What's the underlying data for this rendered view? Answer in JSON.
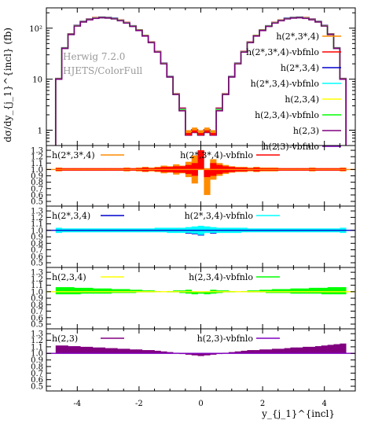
{
  "x_ticks": [
    "-4",
    "-2",
    "0",
    "2",
    "4"
  ],
  "x_label": "y_{j_1}^{incl}",
  "watermark": [
    "Herwig 7.2.0",
    "HJETS/ColorFull"
  ],
  "top": {
    "y_label": "dσ/dy_{j_1}^{incl} (fb)",
    "y_ticks": [
      "10²",
      "10",
      "1"
    ]
  },
  "ratio_ticks": [
    "1.3",
    "1.2",
    "1.1",
    "1.0",
    "0.9",
    "0.8",
    "0.7",
    "0.6",
    "0.5"
  ],
  "colors": {
    "h2s3s4": "#ff8c00",
    "h2s3s4_vbf": "#ff0000",
    "h2s34": "#0000cd",
    "h2s34_vbf": "#00ffff",
    "h234": "#ffff00",
    "h234_vbf": "#00ff00",
    "h23": "#800080",
    "h23_vbf": "#8000c0"
  },
  "chart_data": {
    "type": "histogram",
    "x_range": [
      -5,
      5
    ],
    "bin_edges": [
      -4.7,
      -4.5,
      -4.3,
      -4.1,
      -3.9,
      -3.7,
      -3.5,
      -3.3,
      -3.1,
      -2.9,
      -2.7,
      -2.5,
      -2.3,
      -2.1,
      -1.9,
      -1.7,
      -1.5,
      -1.3,
      -1.1,
      -0.9,
      -0.7,
      -0.5,
      -0.3,
      -0.1,
      0.1,
      0.3,
      0.5,
      0.7,
      0.9,
      1.1,
      1.3,
      1.5,
      1.7,
      1.9,
      2.1,
      2.3,
      2.5,
      2.7,
      2.9,
      3.1,
      3.3,
      3.5,
      3.7,
      3.9,
      4.1,
      4.3,
      4.5,
      4.7
    ],
    "main_panel": {
      "y_scale": "log",
      "y_range": [
        0.5,
        250
      ],
      "values": [
        10,
        40,
        75,
        110,
        132,
        146,
        156,
        160,
        158,
        152,
        140,
        126,
        108,
        90,
        70,
        52,
        34,
        20,
        11,
        5,
        2.4,
        0.8,
        0.9,
        0.8,
        0.9,
        0.8,
        2.4,
        5,
        11,
        20,
        34,
        52,
        70,
        90,
        108,
        126,
        140,
        152,
        158,
        160,
        156,
        146,
        132,
        110,
        75,
        40,
        10
      ],
      "series": [
        {
          "name": "h(2*,3*,4)",
          "color": "#ff8c00"
        },
        {
          "name": "h(2*,3*,4)-vbfnlo",
          "color": "#ff0000"
        },
        {
          "name": "h(2*,3,4)",
          "color": "#0000cd"
        },
        {
          "name": "h(2*,3,4)-vbfnlo",
          "color": "#00ffff"
        },
        {
          "name": "h(2,3,4)",
          "color": "#ffff00"
        },
        {
          "name": "h(2,3,4)-vbfnlo",
          "color": "#00ff00"
        },
        {
          "name": "h(2,3)",
          "color": "#800080"
        },
        {
          "name": "h(2,3)-vbfnlo",
          "color": "#8000c0"
        }
      ]
    },
    "ratio_panels": [
      {
        "y_range": [
          0.5,
          1.35
        ],
        "legend": [
          "h(2*,3*,4)",
          "h(2*,3*,4)-vbfnlo"
        ],
        "line": {
          "color": "#ff8c00",
          "values": [
            1,
            1,
            1,
            1,
            1,
            1,
            1,
            1,
            1,
            1,
            1,
            1,
            1,
            1,
            1,
            1,
            1,
            1,
            1,
            1,
            1,
            1,
            1,
            1,
            1,
            1,
            1,
            1,
            1,
            1,
            1,
            1,
            1,
            1,
            1,
            1,
            1,
            1,
            1,
            1,
            1,
            1,
            1,
            1,
            1,
            1,
            1
          ]
        },
        "band": {
          "color": "#ff8c00",
          "lo": [
            0.97,
            0.98,
            0.98,
            0.98,
            0.98,
            0.98,
            0.98,
            0.98,
            0.98,
            0.98,
            0.98,
            0.97,
            0.98,
            0.97,
            0.96,
            0.97,
            0.96,
            0.94,
            0.95,
            0.92,
            0.94,
            0.88,
            0.78,
            1.18,
            0.6,
            0.84,
            0.9,
            0.93,
            0.95,
            0.96,
            0.96,
            0.97,
            0.96,
            0.97,
            0.97,
            0.97,
            0.98,
            0.98,
            0.98,
            0.98,
            0.98,
            0.97,
            0.98,
            0.98,
            0.98,
            0.98,
            0.97
          ],
          "hi": [
            1.03,
            1.02,
            1.02,
            1.02,
            1.02,
            1.02,
            1.02,
            1.02,
            1.02,
            1.02,
            1.02,
            1.03,
            1.02,
            1.03,
            1.04,
            1.03,
            1.04,
            1.06,
            1.05,
            1.08,
            1.06,
            1.12,
            1.22,
            1.3,
            1.02,
            1.16,
            1.1,
            1.07,
            1.05,
            1.04,
            1.04,
            1.03,
            1.04,
            1.03,
            1.03,
            1.03,
            1.02,
            1.02,
            1.02,
            1.02,
            1.02,
            1.03,
            1.02,
            1.02,
            1.02,
            1.02,
            1.03
          ]
        },
        "band2": {
          "color": "#ff0000",
          "lo": [
            0.98,
            0.98,
            0.98,
            0.98,
            0.98,
            0.98,
            0.98,
            0.98,
            0.98,
            0.98,
            0.98,
            0.98,
            0.98,
            0.98,
            0.97,
            0.98,
            0.97,
            0.96,
            0.96,
            0.95,
            0.95,
            0.93,
            0.9,
            1.0,
            0.88,
            0.9,
            0.93,
            0.95,
            0.96,
            0.97,
            0.97,
            0.98,
            0.97,
            0.98,
            0.98,
            0.98,
            0.98,
            0.98,
            0.98,
            0.98,
            0.98,
            0.98,
            0.98,
            0.98,
            0.98,
            0.98,
            0.98
          ],
          "hi": [
            1.02,
            1.02,
            1.02,
            1.02,
            1.02,
            1.02,
            1.02,
            1.02,
            1.02,
            1.02,
            1.02,
            1.02,
            1.02,
            1.02,
            1.03,
            1.02,
            1.03,
            1.04,
            1.04,
            1.05,
            1.05,
            1.07,
            1.1,
            1.3,
            1.0,
            1.1,
            1.07,
            1.05,
            1.04,
            1.03,
            1.03,
            1.02,
            1.03,
            1.02,
            1.02,
            1.02,
            1.02,
            1.02,
            1.02,
            1.02,
            1.02,
            1.02,
            1.02,
            1.02,
            1.02,
            1.02,
            1.02
          ]
        }
      },
      {
        "y_range": [
          0.5,
          1.35
        ],
        "legend": [
          "h(2*,3,4)",
          "h(2*,3,4)-vbfnlo"
        ],
        "line": {
          "color": "#0000cd",
          "values": [
            1,
            1,
            1,
            1,
            1,
            1,
            1,
            1,
            1,
            1,
            1,
            1,
            1,
            1,
            1,
            1,
            1,
            1,
            1,
            1,
            1,
            1,
            1,
            1,
            1,
            1,
            1,
            1,
            1,
            1,
            1,
            1,
            1,
            1,
            1,
            1,
            1,
            1,
            1,
            1,
            1,
            1,
            1,
            1,
            1,
            1,
            1
          ]
        },
        "band": {
          "color": "#0000cd",
          "lo": [
            1,
            1,
            1,
            1,
            1,
            1,
            1,
            1,
            1,
            1,
            1,
            1,
            1,
            1,
            1,
            1,
            1,
            1,
            1,
            0.98,
            0.97,
            0.95,
            0.94,
            0.92,
            0.96,
            0.95,
            0.97,
            0.98,
            1,
            1,
            1,
            1,
            1,
            1,
            1,
            1,
            1,
            1,
            1,
            1,
            1,
            1,
            1,
            1,
            1,
            1,
            1
          ],
          "hi": [
            1,
            1,
            1,
            1,
            1,
            1,
            1,
            1,
            1,
            1,
            1,
            1,
            1,
            1,
            1,
            1,
            1,
            1,
            1,
            1,
            1,
            1,
            1,
            1,
            1,
            1,
            1,
            1,
            1,
            1,
            1,
            1,
            1,
            1,
            1,
            1,
            1,
            1,
            1,
            1,
            1,
            1,
            1,
            1,
            1,
            1,
            1
          ]
        },
        "band2": {
          "color": "#00ffff",
          "lo": [
            0.96,
            0.97,
            0.97,
            0.97,
            0.97,
            0.97,
            0.97,
            0.97,
            0.97,
            0.97,
            0.97,
            0.97,
            0.97,
            0.97,
            0.97,
            0.97,
            0.97,
            0.97,
            0.96,
            0.96,
            0.96,
            0.96,
            0.95,
            0.93,
            0.96,
            0.96,
            0.96,
            0.96,
            0.96,
            0.96,
            0.97,
            0.97,
            0.97,
            0.97,
            0.97,
            0.97,
            0.97,
            0.97,
            0.97,
            0.97,
            0.97,
            0.97,
            0.97,
            0.97,
            0.97,
            0.97,
            0.96
          ],
          "hi": [
            1.04,
            1.03,
            1.03,
            1.03,
            1.03,
            1.03,
            1.03,
            1.03,
            1.03,
            1.03,
            1.03,
            1.03,
            1.03,
            1.03,
            1.03,
            1.03,
            1.04,
            1.04,
            1.04,
            1.04,
            1.04,
            1.05,
            1.06,
            1.07,
            1.06,
            1.05,
            1.04,
            1.04,
            1.04,
            1.04,
            1.04,
            1.03,
            1.03,
            1.03,
            1.03,
            1.03,
            1.03,
            1.03,
            1.03,
            1.03,
            1.03,
            1.03,
            1.03,
            1.03,
            1.03,
            1.03,
            1.04
          ]
        }
      },
      {
        "y_range": [
          0.5,
          1.35
        ],
        "legend": [
          "h(2,3,4)",
          "h(2,3,4)-vbfnlo"
        ],
        "line": {
          "color": "#ffff00",
          "values": [
            1,
            1,
            1,
            1,
            1,
            1,
            1,
            1,
            1,
            1,
            1,
            1,
            1,
            1,
            1,
            1,
            1,
            1,
            1,
            1,
            1,
            1,
            1,
            1,
            1,
            1,
            1,
            1,
            1,
            1,
            1,
            1,
            1,
            1,
            1,
            1,
            1,
            1,
            1,
            1,
            1,
            1,
            1,
            1,
            1,
            1,
            1
          ]
        },
        "band": {
          "color": "#00ff00",
          "lo": [
            0.96,
            0.96,
            0.96,
            0.96,
            0.97,
            0.97,
            0.97,
            0.97,
            0.97,
            0.98,
            0.98,
            0.98,
            0.98,
            0.99,
            0.99,
            0.99,
            1.0,
            1.0,
            0.99,
            0.99,
            0.98,
            0.97,
            0.96,
            0.97,
            0.96,
            0.97,
            0.98,
            0.99,
            0.99,
            1.0,
            1.0,
            0.99,
            0.99,
            0.99,
            0.98,
            0.98,
            0.98,
            0.98,
            0.97,
            0.97,
            0.97,
            0.97,
            0.97,
            0.96,
            0.96,
            0.96,
            0.96
          ],
          "hi": [
            1.07,
            1.07,
            1.07,
            1.06,
            1.06,
            1.06,
            1.05,
            1.05,
            1.05,
            1.04,
            1.04,
            1.04,
            1.03,
            1.03,
            1.02,
            1.02,
            1.01,
            1.0,
            1.01,
            1.02,
            1.02,
            1.03,
            1.0,
            0.99,
            1.0,
            1.03,
            1.02,
            1.02,
            1.01,
            1.0,
            1.01,
            1.02,
            1.02,
            1.03,
            1.03,
            1.04,
            1.04,
            1.04,
            1.05,
            1.05,
            1.05,
            1.06,
            1.06,
            1.06,
            1.07,
            1.07,
            1.07
          ]
        },
        "band2": null
      },
      {
        "y_range": [
          0.5,
          1.35
        ],
        "legend": [
          "h(2,3)",
          "h(2,3)-vbfnlo"
        ],
        "line": {
          "color": "#8000c0",
          "values": [
            1,
            1,
            1,
            1,
            1,
            1,
            1,
            1,
            1,
            1,
            1,
            1,
            1,
            1,
            1,
            1,
            1,
            1,
            1,
            1,
            1,
            1,
            1,
            1,
            1,
            1,
            1,
            1,
            1,
            1,
            1,
            1,
            1,
            1,
            1,
            1,
            1,
            1,
            1,
            1,
            1,
            1,
            1,
            1,
            1,
            1,
            1
          ]
        },
        "band": {
          "color": "#800080",
          "lo": [
            1,
            1,
            1,
            1,
            1,
            1,
            1,
            1,
            1,
            1,
            1,
            1,
            1,
            1,
            1,
            1,
            1,
            1,
            1,
            1,
            0.99,
            0.98,
            0.97,
            0.96,
            0.97,
            0.98,
            0.99,
            1,
            1,
            1,
            1,
            1,
            1,
            1,
            1,
            1,
            1,
            1,
            1,
            1,
            1,
            1,
            1,
            1,
            1,
            1,
            1
          ],
          "hi": [
            1.12,
            1.12,
            1.11,
            1.11,
            1.1,
            1.1,
            1.09,
            1.09,
            1.08,
            1.08,
            1.07,
            1.07,
            1.06,
            1.06,
            1.05,
            1.05,
            1.04,
            1.03,
            1.02,
            1.01,
            1.0,
            1.0,
            1.0,
            1.0,
            1.0,
            1.0,
            1.0,
            1.01,
            1.02,
            1.03,
            1.04,
            1.05,
            1.05,
            1.06,
            1.06,
            1.07,
            1.07,
            1.08,
            1.09,
            1.09,
            1.1,
            1.1,
            1.11,
            1.12,
            1.13,
            1.14,
            1.15
          ]
        },
        "band2": null
      }
    ]
  }
}
